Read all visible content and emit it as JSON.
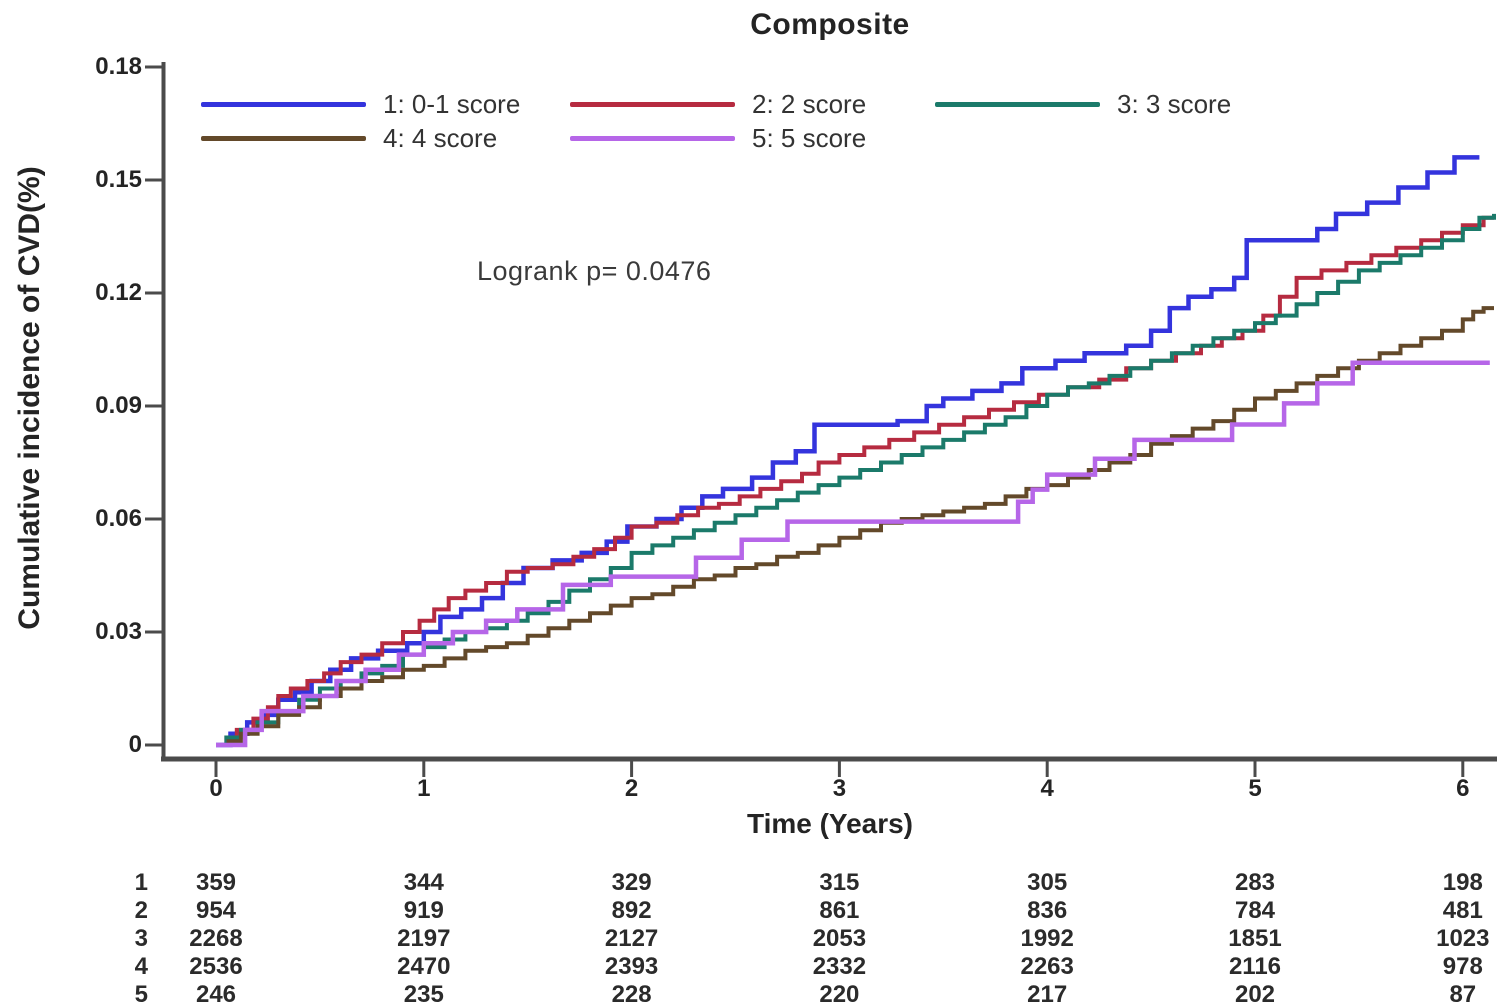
{
  "title": "Composite",
  "annotation": "Logrank p= 0.0476",
  "x_axis": {
    "label": "Time (Years)",
    "tick_labels": [
      "0",
      "1",
      "2",
      "3",
      "4",
      "5",
      "6"
    ],
    "tick_values": [
      0,
      1,
      2,
      3,
      4,
      5,
      6
    ]
  },
  "y_axis": {
    "label": "Cumulative incidence of CVD(%)",
    "tick_labels": [
      "0",
      "0.03",
      "0.06",
      "0.09",
      "0.12",
      "0.15",
      "0.18"
    ],
    "tick_values": [
      0,
      0.03,
      0.06,
      0.09,
      0.12,
      0.15,
      0.18
    ]
  },
  "chart_data": {
    "type": "line",
    "subtype": "step",
    "title": "Composite",
    "xlabel": "Time (Years)",
    "ylabel": "Cumulative incidence of CVD(%)",
    "xlim": [
      0,
      6.2
    ],
    "ylim": [
      0,
      0.18
    ],
    "grid": false,
    "legend_position": "top-left-inside",
    "annotation": "Logrank p= 0.0476",
    "series": [
      {
        "name": "1: 0-1 score",
        "color": "#3434dd",
        "stroke_width": 4.5,
        "points": [
          [
            0,
            0
          ],
          [
            0.07,
            0.003
          ],
          [
            0.15,
            0.006
          ],
          [
            0.22,
            0.008
          ],
          [
            0.3,
            0.012
          ],
          [
            0.38,
            0.014
          ],
          [
            0.46,
            0.017
          ],
          [
            0.55,
            0.02
          ],
          [
            0.65,
            0.023
          ],
          [
            0.78,
            0.025
          ],
          [
            0.92,
            0.027
          ],
          [
            1.0,
            0.03
          ],
          [
            1.08,
            0.034
          ],
          [
            1.18,
            0.036
          ],
          [
            1.28,
            0.039
          ],
          [
            1.38,
            0.043
          ],
          [
            1.48,
            0.047
          ],
          [
            1.62,
            0.049
          ],
          [
            1.76,
            0.051
          ],
          [
            1.88,
            0.054
          ],
          [
            1.98,
            0.058
          ],
          [
            2.12,
            0.06
          ],
          [
            2.24,
            0.063
          ],
          [
            2.34,
            0.066
          ],
          [
            2.44,
            0.068
          ],
          [
            2.58,
            0.071
          ],
          [
            2.68,
            0.075
          ],
          [
            2.79,
            0.078
          ],
          [
            2.88,
            0.085
          ],
          [
            3.28,
            0.086
          ],
          [
            3.42,
            0.09
          ],
          [
            3.5,
            0.092
          ],
          [
            3.64,
            0.094
          ],
          [
            3.78,
            0.096
          ],
          [
            3.88,
            0.1
          ],
          [
            4.04,
            0.102
          ],
          [
            4.18,
            0.104
          ],
          [
            4.38,
            0.106
          ],
          [
            4.5,
            0.11
          ],
          [
            4.59,
            0.116
          ],
          [
            4.68,
            0.119
          ],
          [
            4.79,
            0.121
          ],
          [
            4.9,
            0.124
          ],
          [
            4.96,
            0.134
          ],
          [
            5.3,
            0.137
          ],
          [
            5.39,
            0.141
          ],
          [
            5.54,
            0.144
          ],
          [
            5.69,
            0.148
          ],
          [
            5.83,
            0.152
          ],
          [
            5.96,
            0.156
          ],
          [
            6.08,
            0.156
          ]
        ]
      },
      {
        "name": "2: 2 score",
        "color": "#b62b40",
        "stroke_width": 4,
        "points": [
          [
            0,
            0
          ],
          [
            0.05,
            0.002
          ],
          [
            0.1,
            0.004
          ],
          [
            0.18,
            0.007
          ],
          [
            0.25,
            0.01
          ],
          [
            0.3,
            0.013
          ],
          [
            0.36,
            0.015
          ],
          [
            0.44,
            0.017
          ],
          [
            0.52,
            0.019
          ],
          [
            0.6,
            0.022
          ],
          [
            0.7,
            0.024
          ],
          [
            0.8,
            0.027
          ],
          [
            0.9,
            0.03
          ],
          [
            0.98,
            0.033
          ],
          [
            1.05,
            0.036
          ],
          [
            1.12,
            0.039
          ],
          [
            1.2,
            0.041
          ],
          [
            1.3,
            0.043
          ],
          [
            1.4,
            0.046
          ],
          [
            1.5,
            0.047
          ],
          [
            1.62,
            0.048
          ],
          [
            1.72,
            0.05
          ],
          [
            1.82,
            0.052
          ],
          [
            1.92,
            0.055
          ],
          [
            2.0,
            0.058
          ],
          [
            2.12,
            0.059
          ],
          [
            2.22,
            0.061
          ],
          [
            2.32,
            0.063
          ],
          [
            2.42,
            0.064
          ],
          [
            2.52,
            0.066
          ],
          [
            2.62,
            0.068
          ],
          [
            2.72,
            0.07
          ],
          [
            2.82,
            0.072
          ],
          [
            2.9,
            0.075
          ],
          [
            3.0,
            0.077
          ],
          [
            3.12,
            0.079
          ],
          [
            3.24,
            0.081
          ],
          [
            3.36,
            0.083
          ],
          [
            3.48,
            0.085
          ],
          [
            3.6,
            0.087
          ],
          [
            3.72,
            0.089
          ],
          [
            3.84,
            0.091
          ],
          [
            3.96,
            0.093
          ],
          [
            4.1,
            0.095
          ],
          [
            4.25,
            0.097
          ],
          [
            4.38,
            0.1
          ],
          [
            4.5,
            0.102
          ],
          [
            4.62,
            0.104
          ],
          [
            4.74,
            0.106
          ],
          [
            4.84,
            0.108
          ],
          [
            4.94,
            0.11
          ],
          [
            5.04,
            0.114
          ],
          [
            5.12,
            0.119
          ],
          [
            5.2,
            0.124
          ],
          [
            5.32,
            0.126
          ],
          [
            5.44,
            0.128
          ],
          [
            5.56,
            0.13
          ],
          [
            5.68,
            0.132
          ],
          [
            5.8,
            0.134
          ],
          [
            5.9,
            0.136
          ],
          [
            6.0,
            0.138
          ],
          [
            6.1,
            0.14
          ],
          [
            6.15,
            0.14
          ]
        ]
      },
      {
        "name": "3: 3 score",
        "color": "#1b7a6a",
        "stroke_width": 4,
        "points": [
          [
            0,
            0
          ],
          [
            0.05,
            0.002
          ],
          [
            0.12,
            0.004
          ],
          [
            0.2,
            0.006
          ],
          [
            0.3,
            0.009
          ],
          [
            0.4,
            0.012
          ],
          [
            0.5,
            0.015
          ],
          [
            0.6,
            0.017
          ],
          [
            0.7,
            0.019
          ],
          [
            0.8,
            0.021
          ],
          [
            0.9,
            0.024
          ],
          [
            1.0,
            0.026
          ],
          [
            1.1,
            0.028
          ],
          [
            1.2,
            0.03
          ],
          [
            1.3,
            0.031
          ],
          [
            1.4,
            0.033
          ],
          [
            1.5,
            0.035
          ],
          [
            1.6,
            0.038
          ],
          [
            1.7,
            0.041
          ],
          [
            1.8,
            0.044
          ],
          [
            1.9,
            0.047
          ],
          [
            2.0,
            0.051
          ],
          [
            2.1,
            0.053
          ],
          [
            2.2,
            0.055
          ],
          [
            2.3,
            0.057
          ],
          [
            2.4,
            0.059
          ],
          [
            2.5,
            0.061
          ],
          [
            2.6,
            0.063
          ],
          [
            2.7,
            0.065
          ],
          [
            2.8,
            0.067
          ],
          [
            2.9,
            0.069
          ],
          [
            3.0,
            0.071
          ],
          [
            3.1,
            0.073
          ],
          [
            3.2,
            0.075
          ],
          [
            3.3,
            0.077
          ],
          [
            3.4,
            0.079
          ],
          [
            3.5,
            0.081
          ],
          [
            3.6,
            0.083
          ],
          [
            3.7,
            0.085
          ],
          [
            3.8,
            0.087
          ],
          [
            3.9,
            0.09
          ],
          [
            4.0,
            0.093
          ],
          [
            4.1,
            0.095
          ],
          [
            4.2,
            0.096
          ],
          [
            4.3,
            0.098
          ],
          [
            4.4,
            0.1
          ],
          [
            4.5,
            0.102
          ],
          [
            4.6,
            0.104
          ],
          [
            4.7,
            0.106
          ],
          [
            4.8,
            0.108
          ],
          [
            4.9,
            0.11
          ],
          [
            5.0,
            0.112
          ],
          [
            5.1,
            0.114
          ],
          [
            5.2,
            0.117
          ],
          [
            5.3,
            0.12
          ],
          [
            5.4,
            0.123
          ],
          [
            5.5,
            0.126
          ],
          [
            5.6,
            0.128
          ],
          [
            5.7,
            0.13
          ],
          [
            5.8,
            0.132
          ],
          [
            5.9,
            0.134
          ],
          [
            6.0,
            0.137
          ],
          [
            6.08,
            0.14
          ],
          [
            6.15,
            0.141
          ]
        ]
      },
      {
        "name": "4: 4 score",
        "color": "#63492a",
        "stroke_width": 4,
        "points": [
          [
            0,
            0
          ],
          [
            0.06,
            0.001
          ],
          [
            0.12,
            0.003
          ],
          [
            0.2,
            0.005
          ],
          [
            0.3,
            0.008
          ],
          [
            0.4,
            0.01
          ],
          [
            0.5,
            0.013
          ],
          [
            0.6,
            0.015
          ],
          [
            0.7,
            0.017
          ],
          [
            0.8,
            0.018
          ],
          [
            0.9,
            0.02
          ],
          [
            1.0,
            0.021
          ],
          [
            1.1,
            0.023
          ],
          [
            1.2,
            0.025
          ],
          [
            1.3,
            0.026
          ],
          [
            1.4,
            0.027
          ],
          [
            1.5,
            0.029
          ],
          [
            1.6,
            0.031
          ],
          [
            1.7,
            0.033
          ],
          [
            1.8,
            0.035
          ],
          [
            1.9,
            0.037
          ],
          [
            2.0,
            0.039
          ],
          [
            2.1,
            0.04
          ],
          [
            2.2,
            0.042
          ],
          [
            2.3,
            0.044
          ],
          [
            2.4,
            0.045
          ],
          [
            2.5,
            0.047
          ],
          [
            2.6,
            0.048
          ],
          [
            2.7,
            0.05
          ],
          [
            2.8,
            0.051
          ],
          [
            2.9,
            0.053
          ],
          [
            3.0,
            0.055
          ],
          [
            3.1,
            0.057
          ],
          [
            3.2,
            0.059
          ],
          [
            3.3,
            0.06
          ],
          [
            3.4,
            0.061
          ],
          [
            3.5,
            0.062
          ],
          [
            3.6,
            0.063
          ],
          [
            3.7,
            0.064
          ],
          [
            3.8,
            0.066
          ],
          [
            3.9,
            0.068
          ],
          [
            4.0,
            0.069
          ],
          [
            4.1,
            0.071
          ],
          [
            4.2,
            0.073
          ],
          [
            4.3,
            0.075
          ],
          [
            4.4,
            0.077
          ],
          [
            4.5,
            0.08
          ],
          [
            4.6,
            0.082
          ],
          [
            4.7,
            0.084
          ],
          [
            4.8,
            0.086
          ],
          [
            4.9,
            0.089
          ],
          [
            5.0,
            0.092
          ],
          [
            5.1,
            0.094
          ],
          [
            5.2,
            0.096
          ],
          [
            5.3,
            0.098
          ],
          [
            5.4,
            0.1
          ],
          [
            5.5,
            0.102
          ],
          [
            5.6,
            0.104
          ],
          [
            5.7,
            0.106
          ],
          [
            5.8,
            0.108
          ],
          [
            5.9,
            0.11
          ],
          [
            6.0,
            0.113
          ],
          [
            6.05,
            0.115
          ],
          [
            6.1,
            0.116
          ],
          [
            6.15,
            0.116
          ]
        ]
      },
      {
        "name": "5: 5 score",
        "color": "#b666e8",
        "stroke_width": 4.5,
        "points": [
          [
            0,
            0
          ],
          [
            0.1,
            0
          ],
          [
            0.14,
            0.004
          ],
          [
            0.22,
            0.009
          ],
          [
            0.42,
            0.013
          ],
          [
            0.58,
            0.017
          ],
          [
            0.72,
            0.02
          ],
          [
            0.88,
            0.024
          ],
          [
            1.0,
            0.027
          ],
          [
            1.14,
            0.03
          ],
          [
            1.3,
            0.033
          ],
          [
            1.45,
            0.036
          ],
          [
            1.67,
            0.0425
          ],
          [
            1.9,
            0.0447
          ],
          [
            2.31,
            0.0497
          ],
          [
            2.53,
            0.0545
          ],
          [
            2.75,
            0.0593
          ],
          [
            3.86,
            0.0646
          ],
          [
            3.93,
            0.0678
          ],
          [
            4.0,
            0.0718
          ],
          [
            4.23,
            0.076
          ],
          [
            4.42,
            0.081
          ],
          [
            4.89,
            0.0851
          ],
          [
            5.14,
            0.0907
          ],
          [
            5.3,
            0.096
          ],
          [
            5.47,
            0.1015
          ],
          [
            6.13,
            0.1015
          ]
        ]
      }
    ],
    "number_at_risk": {
      "time_points": [
        0,
        1,
        2,
        3,
        4,
        5,
        6
      ],
      "rows": [
        {
          "label": "1",
          "counts": [
            "359",
            "344",
            "329",
            "315",
            "305",
            "283",
            "198"
          ]
        },
        {
          "label": "2",
          "counts": [
            "954",
            "919",
            "892",
            "861",
            "836",
            "784",
            "481"
          ]
        },
        {
          "label": "3",
          "counts": [
            "2268",
            "2197",
            "2127",
            "2053",
            "1992",
            "1851",
            "1023"
          ]
        },
        {
          "label": "4",
          "counts": [
            "2536",
            "2470",
            "2393",
            "2332",
            "2263",
            "2116",
            "978"
          ]
        },
        {
          "label": "5",
          "counts": [
            "246",
            "235",
            "228",
            "220",
            "217",
            "202",
            "87"
          ]
        }
      ]
    }
  }
}
